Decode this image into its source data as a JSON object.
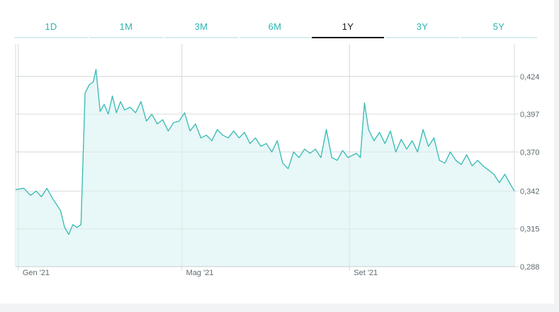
{
  "tabs": [
    {
      "label": "1D",
      "active": false
    },
    {
      "label": "1M",
      "active": false
    },
    {
      "label": "3M",
      "active": false
    },
    {
      "label": "6M",
      "active": false
    },
    {
      "label": "1Y",
      "active": true
    },
    {
      "label": "3Y",
      "active": false
    },
    {
      "label": "5Y",
      "active": false
    }
  ],
  "colors": {
    "line": "#3cbcb6",
    "area": "#e8f7f7",
    "grid": "#d8dcde",
    "active_tab": "#111111",
    "tab_text": "#2bb3b0"
  },
  "chart_data": {
    "type": "area",
    "title": "",
    "xlabel": "",
    "ylabel": "",
    "ylim": [
      0.288,
      0.4472
    ],
    "y_ticks": [
      "0,424",
      "0,397",
      "0,370",
      "0,342",
      "0,315",
      "0,288"
    ],
    "y_tick_values": [
      0.424,
      0.397,
      0.37,
      0.342,
      0.315,
      0.288
    ],
    "x_ticks": [
      "Gen '21",
      "Mag '21",
      "Set '21"
    ],
    "x_tick_dates": [
      "2021-01-01",
      "2021-05-01",
      "2021-09-01"
    ],
    "xlim": [
      "2020-12-30",
      "2021-12-31"
    ],
    "grid": true,
    "series": [
      {
        "x": [
          "2020-12-30",
          "2021-01-05",
          "2021-01-10",
          "2021-01-14",
          "2021-01-18",
          "2021-01-22",
          "2021-01-26",
          "2021-02-01",
          "2021-02-04",
          "2021-02-07",
          "2021-02-10",
          "2021-02-13",
          "2021-02-16",
          "2021-02-19",
          "2021-02-22",
          "2021-02-25",
          "2021-02-27",
          "2021-03-02",
          "2021-03-05",
          "2021-03-08",
          "2021-03-11",
          "2021-03-14",
          "2021-03-17",
          "2021-03-20",
          "2021-03-24",
          "2021-03-28",
          "2021-04-01",
          "2021-04-05",
          "2021-04-09",
          "2021-04-13",
          "2021-04-17",
          "2021-04-21",
          "2021-04-25",
          "2021-04-29",
          "2021-05-03",
          "2021-05-07",
          "2021-05-11",
          "2021-05-15",
          "2021-05-19",
          "2021-05-23",
          "2021-05-27",
          "2021-05-31",
          "2021-06-04",
          "2021-06-08",
          "2021-06-12",
          "2021-06-16",
          "2021-06-20",
          "2021-06-24",
          "2021-06-28",
          "2021-07-02",
          "2021-07-06",
          "2021-07-10",
          "2021-07-14",
          "2021-07-18",
          "2021-07-22",
          "2021-07-26",
          "2021-07-30",
          "2021-08-03",
          "2021-08-07",
          "2021-08-11",
          "2021-08-15",
          "2021-08-19",
          "2021-08-23",
          "2021-08-27",
          "2021-08-31",
          "2021-09-04",
          "2021-09-06",
          "2021-09-09",
          "2021-09-12",
          "2021-09-15",
          "2021-09-19",
          "2021-09-23",
          "2021-09-27",
          "2021-10-01",
          "2021-10-05",
          "2021-10-09",
          "2021-10-13",
          "2021-10-17",
          "2021-10-21",
          "2021-10-25",
          "2021-10-29",
          "2021-11-02",
          "2021-11-06",
          "2021-11-10",
          "2021-11-14",
          "2021-11-18",
          "2021-11-22",
          "2021-11-26",
          "2021-11-30",
          "2021-12-04",
          "2021-12-08",
          "2021-12-12",
          "2021-12-16",
          "2021-12-20",
          "2021-12-24",
          "2021-12-28",
          "2021-12-31"
        ],
        "values": [
          0.343,
          0.344,
          0.339,
          0.342,
          0.338,
          0.344,
          0.337,
          0.328,
          0.316,
          0.311,
          0.318,
          0.316,
          0.318,
          0.412,
          0.418,
          0.42,
          0.429,
          0.399,
          0.404,
          0.397,
          0.41,
          0.398,
          0.406,
          0.4,
          0.402,
          0.398,
          0.406,
          0.392,
          0.397,
          0.39,
          0.393,
          0.385,
          0.391,
          0.392,
          0.398,
          0.385,
          0.39,
          0.38,
          0.382,
          0.378,
          0.386,
          0.382,
          0.38,
          0.385,
          0.38,
          0.384,
          0.376,
          0.38,
          0.374,
          0.376,
          0.37,
          0.378,
          0.362,
          0.358,
          0.37,
          0.366,
          0.372,
          0.369,
          0.372,
          0.366,
          0.386,
          0.366,
          0.364,
          0.371,
          0.366,
          0.368,
          0.369,
          0.366,
          0.405,
          0.386,
          0.378,
          0.384,
          0.376,
          0.385,
          0.37,
          0.379,
          0.372,
          0.378,
          0.37,
          0.386,
          0.374,
          0.38,
          0.364,
          0.362,
          0.37,
          0.364,
          0.361,
          0.368,
          0.36,
          0.364,
          0.36,
          0.357,
          0.354,
          0.348,
          0.354,
          0.347,
          0.342
        ]
      }
    ]
  }
}
